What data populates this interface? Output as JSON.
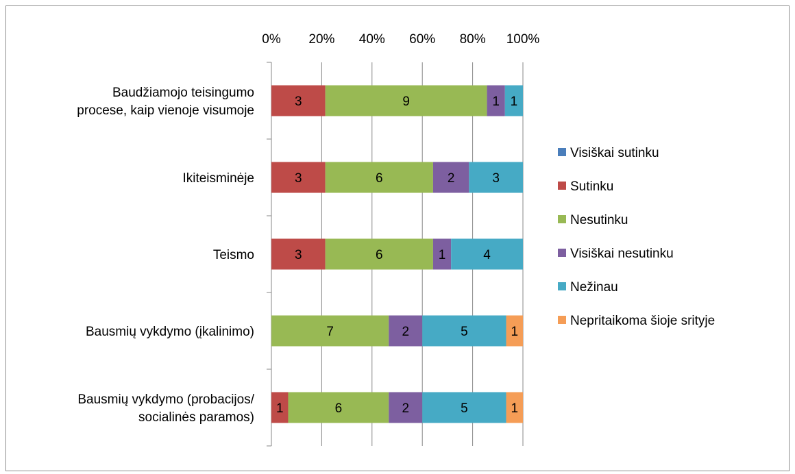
{
  "chart_data": {
    "type": "bar",
    "orientation": "horizontal",
    "stacking": "percent",
    "categories": [
      [
        "Baudžiamojo teisingumo",
        "procese, kaip vienoje visumoje"
      ],
      [
        "Ikiteisminėje"
      ],
      [
        "Teismo"
      ],
      [
        "Bausmių vykdymo (įkalinimo)"
      ],
      [
        "Bausmių vykdymo (probacijos/",
        "socialinės paramos)"
      ]
    ],
    "series": [
      {
        "name": "Visiškai sutinku",
        "color": "#4a7ebb",
        "values": [
          0,
          0,
          0,
          0,
          0
        ]
      },
      {
        "name": "Sutinku",
        "color": "#be4b48",
        "values": [
          3,
          3,
          3,
          0,
          1
        ]
      },
      {
        "name": "Nesutinku",
        "color": "#98b954",
        "values": [
          9,
          6,
          6,
          7,
          6
        ]
      },
      {
        "name": "Visiškai nesutinku",
        "color": "#7d5fa0",
        "values": [
          1,
          2,
          1,
          2,
          2
        ]
      },
      {
        "name": "Nežinau",
        "color": "#46aac5",
        "values": [
          1,
          3,
          4,
          5,
          5
        ]
      },
      {
        "name": "Nepritaikoma šioje srityje",
        "color": "#f59d56",
        "values": [
          0,
          0,
          0,
          1,
          1
        ]
      }
    ],
    "xticks": [
      "0%",
      "20%",
      "40%",
      "60%",
      "80%",
      "100%"
    ],
    "xlim": [
      0,
      100
    ],
    "grid": true,
    "legend": "right",
    "data_labels": true,
    "title": "",
    "xlabel": "",
    "ylabel": ""
  }
}
